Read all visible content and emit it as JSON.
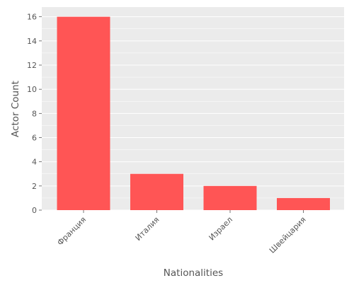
{
  "chart_data": {
    "type": "bar",
    "title": "",
    "xlabel": "Nationalities",
    "ylabel": "Actor Count",
    "categories": [
      "Франция",
      "Италия",
      "Израел",
      "Швейцария"
    ],
    "values": [
      16,
      3,
      2,
      1
    ],
    "ylim": [
      0,
      16.8
    ],
    "yticks": [
      0,
      2,
      4,
      6,
      8,
      10,
      12,
      14,
      16
    ],
    "grid": true,
    "colors": {
      "bar": "#ff5555",
      "panel": "#ebebeb",
      "grid": "#ffffff",
      "text": "#555555"
    }
  }
}
